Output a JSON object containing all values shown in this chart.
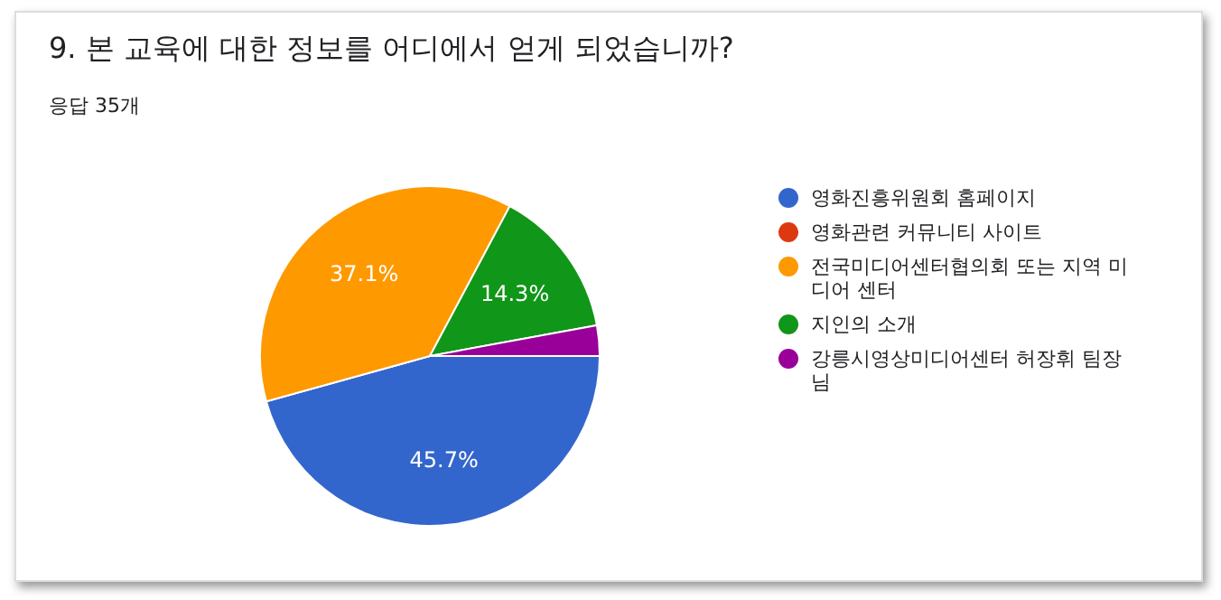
{
  "chart_data": {
    "type": "pie",
    "title": "9. 본 교육에 대한 정보를 어디에서 얻게 되었습니까?",
    "subtitle": "응답 35개",
    "categories": [
      "영화진흥위원회 홈페이지",
      "영화관련 커뮤니티 사이트",
      "전국미디어센터협의회 또는 지역 미디어 센터",
      "지인의 소개",
      "강릉시영상미디어센터 허장휘 팀장님"
    ],
    "values": [
      45.7,
      0,
      37.1,
      14.3,
      2.9
    ],
    "colors": [
      "#3366cc",
      "#dc3912",
      "#ff9900",
      "#109618",
      "#990099"
    ],
    "value_labels": [
      "45.7%",
      null,
      "37.1%",
      "14.3%",
      null
    ],
    "legend": "right"
  }
}
